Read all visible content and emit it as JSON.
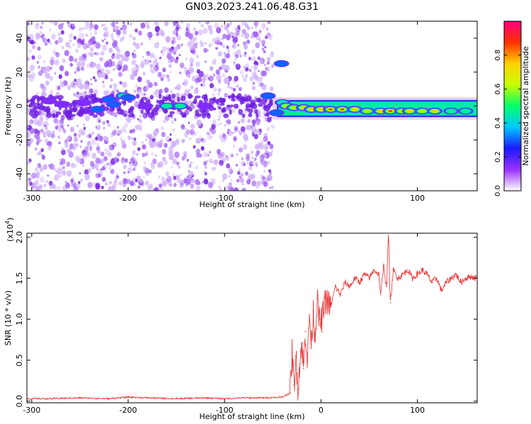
{
  "title": "GN03.2023.241.06.48.G31",
  "chart_data": [
    {
      "type": "heatmap",
      "xlabel": "Height of straight line (km)",
      "ylabel": "Frequency (Hz)",
      "xlim": [
        -305,
        162
      ],
      "ylim": [
        -50,
        50
      ],
      "xticks": [
        -300,
        -200,
        -100,
        0,
        100
      ],
      "yticks": [
        -40,
        -20,
        0,
        20,
        40
      ],
      "grid": false,
      "noise_region_x": [
        -305,
        -50
      ],
      "signal_x_start": -50,
      "blobs": [
        {
          "x": -282,
          "y": 3,
          "amp": 0.18
        },
        {
          "x": -268,
          "y": 1,
          "amp": 0.2
        },
        {
          "x": -246,
          "y": 2,
          "amp": 0.22
        },
        {
          "x": -232,
          "y": -2,
          "amp": 0.3
        },
        {
          "x": -220,
          "y": 4,
          "amp": 0.4
        },
        {
          "x": -215,
          "y": 1,
          "amp": 0.42
        },
        {
          "x": -205,
          "y": 6,
          "amp": 0.45
        },
        {
          "x": -200,
          "y": 5,
          "amp": 0.3
        },
        {
          "x": -182,
          "y": 0,
          "amp": 0.2
        },
        {
          "x": -160,
          "y": 0,
          "amp": 0.55
        },
        {
          "x": -146,
          "y": 0,
          "amp": 0.5
        },
        {
          "x": -120,
          "y": 0,
          "amp": 0.18
        },
        {
          "x": -55,
          "y": 6,
          "amp": 0.4
        },
        {
          "x": -46,
          "y": -4,
          "amp": 0.35
        },
        {
          "x": -40,
          "y": 2,
          "amp": 0.45
        },
        {
          "x": -41,
          "y": 25,
          "amp": 0.3
        }
      ],
      "band": [
        {
          "x": -36,
          "y": 0,
          "amp": 0.65
        },
        {
          "x": -28,
          "y": -1,
          "amp": 0.7
        },
        {
          "x": -18,
          "y": -1,
          "amp": 0.8
        },
        {
          "x": -10,
          "y": -2,
          "amp": 0.85
        },
        {
          "x": 0,
          "y": -2,
          "amp": 0.8
        },
        {
          "x": 10,
          "y": -2,
          "amp": 0.9
        },
        {
          "x": 22,
          "y": -2,
          "amp": 0.95
        },
        {
          "x": 35,
          "y": -2,
          "amp": 0.85
        },
        {
          "x": 48,
          "y": -3,
          "amp": 0.7
        },
        {
          "x": 62,
          "y": -3,
          "amp": 0.85
        },
        {
          "x": 72,
          "y": -3,
          "amp": 0.9
        },
        {
          "x": 84,
          "y": -3,
          "amp": 0.6
        },
        {
          "x": 92,
          "y": -3,
          "amp": 0.85
        },
        {
          "x": 105,
          "y": -3,
          "amp": 0.65
        },
        {
          "x": 118,
          "y": -3,
          "amp": 0.75
        },
        {
          "x": 135,
          "y": -3,
          "amp": 0.45
        },
        {
          "x": 150,
          "y": -3,
          "amp": 0.5
        }
      ],
      "colorbar": {
        "label": "Normalized spectral amplitude",
        "range": [
          0.0,
          1.0
        ],
        "ticks": [
          0.0,
          0.2,
          0.4,
          0.6,
          0.8
        ],
        "tick_labels": [
          "0.0",
          "0.2",
          "0.4",
          "0.6",
          "0.8"
        ],
        "colors": [
          "#ffffff",
          "#9b30ff",
          "#1a1aff",
          "#00c8ff",
          "#00ff6a",
          "#c8ff00",
          "#ffd000",
          "#ff3000",
          "#ff0080"
        ]
      }
    },
    {
      "type": "line",
      "xlabel": "Height of straight line (km)",
      "ylabel": "SNR (10 * v/v)",
      "y_multiplier": "(x10",
      "y_multiplier_exp": "4",
      "y_multiplier_close": ")",
      "xlim": [
        -305,
        162
      ],
      "ylim": [
        -0.02,
        2.05
      ],
      "xticks": [
        -300,
        -200,
        -100,
        0,
        100
      ],
      "yticks": [
        0.0,
        0.5,
        1.0,
        1.5,
        2.0
      ],
      "ytick_labels": [
        "0.0",
        "0.5",
        "1.0",
        "1.5",
        "2.0"
      ],
      "grid": false,
      "series": [
        {
          "color": "#e83030",
          "x": [
            -305,
            -280,
            -250,
            -220,
            -200,
            -180,
            -150,
            -120,
            -100,
            -80,
            -60,
            -40,
            -32,
            -30,
            -28,
            -26,
            -24,
            -22,
            -20,
            -18,
            -16,
            -14,
            -12,
            -10,
            -8,
            -6,
            -4,
            -2,
            0,
            5,
            10,
            15,
            20,
            25,
            30,
            35,
            40,
            45,
            50,
            55,
            60,
            62,
            65,
            68,
            70,
            72,
            75,
            80,
            85,
            90,
            95,
            100,
            105,
            110,
            115,
            120,
            125,
            130,
            135,
            140,
            145,
            150,
            155,
            162
          ],
          "y": [
            0.03,
            0.03,
            0.04,
            0.03,
            0.05,
            0.04,
            0.03,
            0.04,
            0.03,
            0.04,
            0.04,
            0.05,
            0.1,
            0.6,
            0.2,
            0.55,
            0.15,
            0.45,
            0.7,
            0.4,
            0.85,
            0.5,
            1.05,
            0.7,
            1.1,
            0.8,
            1.25,
            1.0,
            0.95,
            1.25,
            1.15,
            1.4,
            1.3,
            1.45,
            1.4,
            1.5,
            1.45,
            1.55,
            1.5,
            1.6,
            1.55,
            1.3,
            1.65,
            1.4,
            2.05,
            1.2,
            1.6,
            1.5,
            1.55,
            1.6,
            1.5,
            1.55,
            1.6,
            1.55,
            1.45,
            1.5,
            1.35,
            1.45,
            1.5,
            1.55,
            1.45,
            1.5,
            1.52,
            1.5
          ]
        }
      ]
    }
  ]
}
